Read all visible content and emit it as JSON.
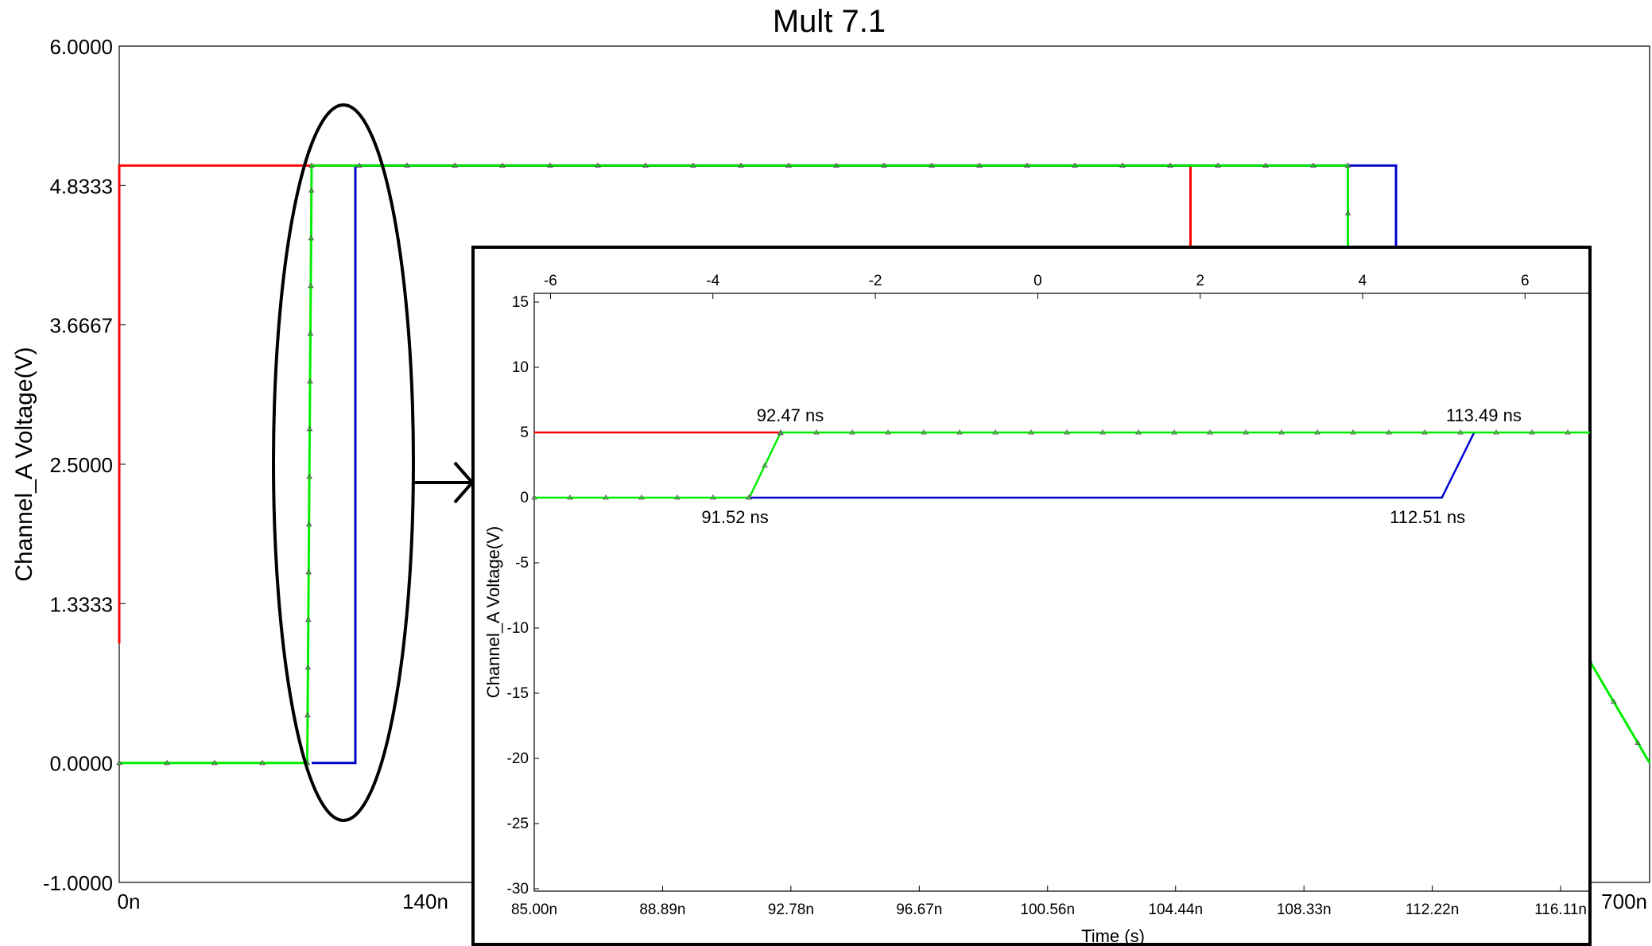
{
  "chart_data": [
    {
      "type": "line",
      "title": "Mult 7.1",
      "ylabel": "Channel_A Voltage(V)",
      "xlabel": "",
      "ylim": [
        -1.0,
        6.0
      ],
      "xlim": [
        0,
        700
      ],
      "y_ticks": [
        "6.0000",
        "4.8333",
        "3.6667",
        "2.5000",
        "1.3333",
        "0.0000",
        "-1.0000"
      ],
      "y_tick_values": [
        6.0,
        4.8333,
        3.6667,
        2.5,
        1.3333,
        0.0,
        -1.0
      ],
      "x_ticks": [
        "0n",
        "140n",
        "700n"
      ],
      "x_tick_values": [
        0,
        140,
        700
      ],
      "series": [
        {
          "color": "#ff0000",
          "x": [
            0,
            0,
            0,
            490,
            490
          ],
          "y": [
            1.0,
            4.3,
            5.0,
            5.0,
            4.3
          ]
        },
        {
          "color": "#0000cc",
          "x": [
            88,
            108,
            108,
            584,
            584
          ],
          "y": [
            0,
            0,
            5.0,
            5.0,
            4.3
          ]
        },
        {
          "color": "#00ee00",
          "x": [
            0,
            86,
            88,
            562,
            562,
            700
          ],
          "y": [
            0,
            0,
            5.0,
            5.0,
            4.3,
            0
          ],
          "markers": true
        }
      ]
    },
    {
      "type": "line",
      "xlabel": "Time (s)",
      "ylabel": "Channel_A Voltage(V)",
      "xlim": [
        85.0,
        117.0
      ],
      "ylim": [
        -30,
        15
      ],
      "x_ticks": [
        "85.00n",
        "88.89n",
        "92.78n",
        "96.67n",
        "100.56n",
        "104.44n",
        "108.33n",
        "112.22n",
        "116.11n"
      ],
      "x_tick_values": [
        85.0,
        88.89,
        92.78,
        96.67,
        100.56,
        104.44,
        108.33,
        112.22,
        116.11
      ],
      "y_ticks": [
        "15",
        "10",
        "5",
        "0",
        "-5",
        "-10",
        "-15",
        "-20",
        "-25",
        "-30"
      ],
      "y_tick_values": [
        15,
        10,
        5,
        0,
        -5,
        -10,
        -15,
        -20,
        -25,
        -30
      ],
      "top_axis_ticks": [
        "-6",
        "-4",
        "-2",
        "0",
        "2",
        "4",
        "6"
      ],
      "top_axis_values": [
        -6,
        -4,
        -2,
        0,
        2,
        4,
        6
      ],
      "top_axis_range": [
        -6.2,
        6.8
      ],
      "annotations": [
        {
          "text": "92.47 ns",
          "x": 92.47,
          "y": 5
        },
        {
          "text": "91.52 ns",
          "x": 91.52,
          "y": 0
        },
        {
          "text": "113.49 ns",
          "x": 113.49,
          "y": 5
        },
        {
          "text": "112.51 ns",
          "x": 112.51,
          "y": 0
        }
      ],
      "series": [
        {
          "color": "#ff0000",
          "x": [
            85.0,
            92.47
          ],
          "y": [
            5,
            5
          ]
        },
        {
          "color": "#0000cc",
          "x": [
            91.52,
            112.51,
            113.49
          ],
          "y": [
            0,
            0,
            5
          ]
        },
        {
          "color": "#00ee00",
          "x": [
            85.0,
            91.52,
            92.47,
            117.0
          ],
          "y": [
            0,
            0,
            5,
            5
          ],
          "markers": true
        }
      ]
    }
  ]
}
